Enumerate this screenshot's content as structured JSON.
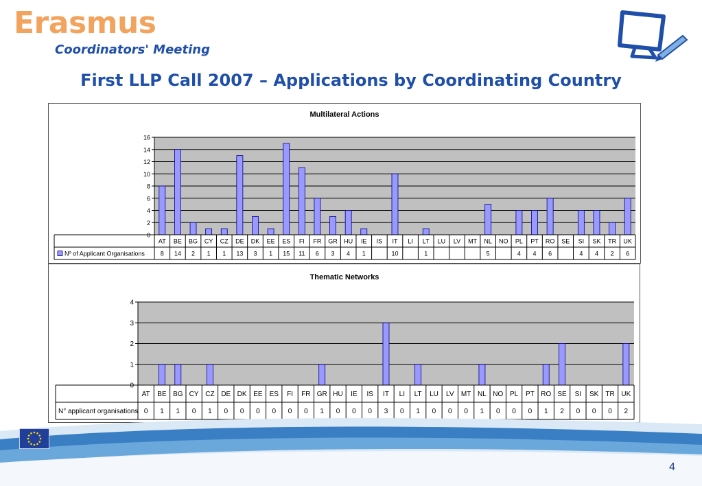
{
  "header": {
    "logo_text": "Erasmus",
    "subtitle": "Coordinators' Meeting",
    "title": "First LLP Call 2007 – Applications by Coordinating Country"
  },
  "colors": {
    "accent_blue": "#1f4fa8",
    "logo_orange": "#f2a35e",
    "bar_fill": "#9999ff",
    "plot_bg": "#c0c0c0"
  },
  "chart_data": [
    {
      "type": "bar",
      "title": "Multilateral Actions",
      "categories": [
        "AT",
        "BE",
        "BG",
        "CY",
        "CZ",
        "DE",
        "DK",
        "EE",
        "ES",
        "FI",
        "FR",
        "GR",
        "HU",
        "IE",
        "IS",
        "IT",
        "LI",
        "LT",
        "LU",
        "LV",
        "MT",
        "NL",
        "NO",
        "PL",
        "PT",
        "RO",
        "SE",
        "SI",
        "SK",
        "TR",
        "UK"
      ],
      "series": [
        {
          "name": "Nº of Applicant Organisations",
          "values": [
            8,
            14,
            2,
            1,
            1,
            13,
            3,
            1,
            15,
            11,
            6,
            3,
            4,
            1,
            null,
            10,
            null,
            1,
            null,
            null,
            null,
            5,
            null,
            4,
            4,
            6,
            null,
            4,
            4,
            2,
            6
          ]
        }
      ],
      "ylim": [
        0,
        16
      ],
      "yticks": [
        0,
        2,
        4,
        6,
        8,
        10,
        12,
        14,
        16
      ],
      "grid": true,
      "legend": "data-table"
    },
    {
      "type": "bar",
      "title": "Thematic Networks",
      "categories": [
        "AT",
        "BE",
        "BG",
        "CY",
        "CZ",
        "DE",
        "DK",
        "EE",
        "ES",
        "FI",
        "FR",
        "GR",
        "HU",
        "IE",
        "IS",
        "IT",
        "LI",
        "LT",
        "LU",
        "LV",
        "MT",
        "NL",
        "NO",
        "PL",
        "PT",
        "RO",
        "SE",
        "SI",
        "SK",
        "TR",
        "UK"
      ],
      "series": [
        {
          "name": "N° applicant organisations",
          "values": [
            0,
            1,
            1,
            0,
            1,
            0,
            0,
            0,
            0,
            0,
            0,
            1,
            0,
            0,
            0,
            3,
            0,
            1,
            0,
            0,
            0,
            1,
            0,
            0,
            0,
            1,
            2,
            0,
            0,
            0,
            2
          ]
        }
      ],
      "ylim": [
        0,
        4
      ],
      "yticks": [
        0,
        1,
        2,
        3,
        4
      ],
      "grid": true,
      "legend": "data-table"
    }
  ],
  "footer": {
    "page_number": "4",
    "flag_icon": "eu-flag-icon"
  }
}
